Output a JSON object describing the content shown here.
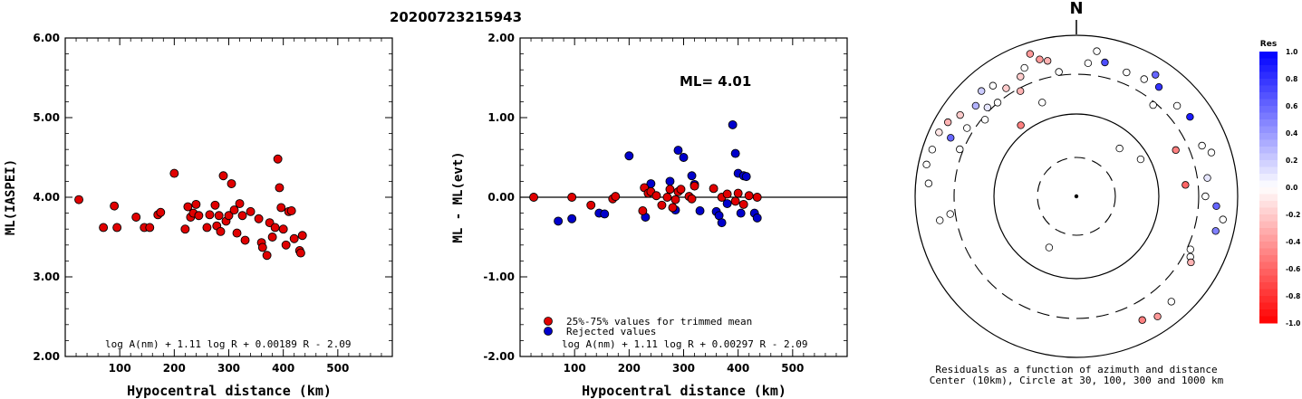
{
  "event_id": "20200723215943",
  "chart_data": [
    {
      "type": "scatter",
      "ylabel": "ML(IASPEI)",
      "xlabel": "Hypocentral distance (km)",
      "xlim": [
        0,
        600
      ],
      "ylim": [
        2.0,
        6.0
      ],
      "xticks": [
        "100",
        "200",
        "300",
        "400",
        "500"
      ],
      "yticks": [
        "2.00",
        "3.00",
        "4.00",
        "5.00",
        "6.00"
      ],
      "formula": "log A(nm) + 1.11 log R + 0.00189 R - 2.09",
      "marker_color": "#e00000",
      "points": [
        [
          25,
          3.97
        ],
        [
          70,
          3.62
        ],
        [
          90,
          3.89
        ],
        [
          95,
          3.62
        ],
        [
          130,
          3.75
        ],
        [
          145,
          3.62
        ],
        [
          155,
          3.62
        ],
        [
          170,
          3.78
        ],
        [
          175,
          3.81
        ],
        [
          200,
          4.3
        ],
        [
          220,
          3.6
        ],
        [
          225,
          3.88
        ],
        [
          230,
          3.75
        ],
        [
          235,
          3.8
        ],
        [
          240,
          3.91
        ],
        [
          245,
          3.77
        ],
        [
          260,
          3.62
        ],
        [
          265,
          3.78
        ],
        [
          275,
          3.9
        ],
        [
          278,
          3.64
        ],
        [
          282,
          3.77
        ],
        [
          285,
          3.57
        ],
        [
          290,
          4.27
        ],
        [
          295,
          3.7
        ],
        [
          300,
          3.77
        ],
        [
          305,
          4.17
        ],
        [
          310,
          3.84
        ],
        [
          315,
          3.55
        ],
        [
          320,
          3.92
        ],
        [
          325,
          3.77
        ],
        [
          330,
          3.46
        ],
        [
          340,
          3.82
        ],
        [
          355,
          3.73
        ],
        [
          360,
          3.43
        ],
        [
          362,
          3.37
        ],
        [
          370,
          3.27
        ],
        [
          375,
          3.68
        ],
        [
          380,
          3.5
        ],
        [
          385,
          3.62
        ],
        [
          390,
          4.48
        ],
        [
          393,
          4.12
        ],
        [
          396,
          3.87
        ],
        [
          400,
          3.6
        ],
        [
          405,
          3.4
        ],
        [
          410,
          3.82
        ],
        [
          415,
          3.83
        ],
        [
          420,
          3.48
        ],
        [
          430,
          3.33
        ],
        [
          432,
          3.3
        ],
        [
          435,
          3.52
        ]
      ]
    },
    {
      "type": "scatter",
      "ylabel": "ML - ML(evt)",
      "xlabel": "Hypocentral distance (km)",
      "xlim": [
        0,
        600
      ],
      "ylim": [
        -2.0,
        2.0
      ],
      "xticks": [
        "100",
        "200",
        "300",
        "400",
        "500"
      ],
      "yticks": [
        "-2.00",
        "-1.00",
        "0.00",
        "1.00",
        "2.00"
      ],
      "annotation": "ML= 4.01",
      "formula": "log A(nm) + 1.11 log R + 0.00297 R - 2.09",
      "legend": [
        "25%-75% values for trimmed mean",
        "Rejected values"
      ],
      "legend_colors": [
        "#e00000",
        "#0000cc"
      ],
      "series": [
        {
          "name": "25%-75% values for trimmed mean",
          "points": [
            [
              25,
              0.0
            ],
            [
              95,
              0.0
            ],
            [
              130,
              -0.1
            ],
            [
              170,
              -0.02
            ],
            [
              175,
              0.01
            ],
            [
              225,
              -0.17
            ],
            [
              228,
              0.12
            ],
            [
              235,
              0.05
            ],
            [
              240,
              0.07
            ],
            [
              250,
              0.02
            ],
            [
              260,
              -0.1
            ],
            [
              270,
              0.0
            ],
            [
              275,
              0.1
            ],
            [
              280,
              -0.13
            ],
            [
              285,
              -0.03
            ],
            [
              290,
              0.07
            ],
            [
              295,
              0.1
            ],
            [
              310,
              0.01
            ],
            [
              315,
              -0.02
            ],
            [
              320,
              0.14
            ],
            [
              355,
              0.11
            ],
            [
              370,
              0.0
            ],
            [
              380,
              0.04
            ],
            [
              395,
              -0.05
            ],
            [
              400,
              0.05
            ],
            [
              410,
              -0.09
            ],
            [
              420,
              0.02
            ],
            [
              435,
              0.0
            ]
          ]
        },
        {
          "name": "Rejected values",
          "points": [
            [
              70,
              -0.3
            ],
            [
              95,
              -0.27
            ],
            [
              145,
              -0.2
            ],
            [
              155,
              -0.21
            ],
            [
              200,
              0.52
            ],
            [
              230,
              -0.25
            ],
            [
              240,
              0.17
            ],
            [
              275,
              0.2
            ],
            [
              285,
              -0.16
            ],
            [
              290,
              0.59
            ],
            [
              300,
              0.5
            ],
            [
              315,
              0.27
            ],
            [
              320,
              0.16
            ],
            [
              330,
              -0.17
            ],
            [
              360,
              -0.18
            ],
            [
              365,
              -0.23
            ],
            [
              370,
              -0.32
            ],
            [
              380,
              -0.08
            ],
            [
              390,
              0.91
            ],
            [
              395,
              0.55
            ],
            [
              400,
              0.3
            ],
            [
              405,
              -0.2
            ],
            [
              410,
              0.27
            ],
            [
              415,
              0.26
            ],
            [
              430,
              -0.2
            ],
            [
              435,
              -0.26
            ]
          ]
        }
      ]
    },
    {
      "type": "scatter",
      "subtype": "polar-residuals",
      "north_label": "N",
      "caption": [
        "Residuals as a function of azimuth and distance",
        "Center (10km), Circle at 30, 100, 300 and 1000 km"
      ],
      "colorbar_title": "Res",
      "colorbar_ticks": [
        "1.0",
        "0.8",
        "0.6",
        "0.4",
        "0.2",
        "0.0",
        "-0.2",
        "-0.4",
        "-0.6",
        "-0.8",
        "-1.0"
      ],
      "points_az_r_res": [
        [
          -65,
          0.94,
          -0.1
        ],
        [
          -60,
          0.92,
          -0.3
        ],
        [
          -55,
          0.88,
          -0.2
        ],
        [
          -58,
          0.8,
          0.0
        ],
        [
          -65,
          0.86,
          0.6
        ],
        [
          -68,
          0.78,
          0.0
        ],
        [
          -72,
          0.94,
          0.0
        ],
        [
          -78,
          0.95,
          0.0
        ],
        [
          -85,
          0.92,
          0.0
        ],
        [
          -48,
          0.84,
          0.3
        ],
        [
          -50,
          0.74,
          0.0
        ],
        [
          -45,
          0.78,
          0.1
        ],
        [
          -40,
          0.76,
          0.0
        ],
        [
          -42,
          0.88,
          0.2
        ],
        [
          -37,
          0.86,
          0.0
        ],
        [
          -33,
          0.8,
          -0.2
        ],
        [
          -28,
          0.74,
          -0.3
        ],
        [
          -25,
          0.82,
          -0.2
        ],
        [
          -22,
          0.86,
          0.0
        ],
        [
          -18,
          0.93,
          -0.4
        ],
        [
          -15,
          0.88,
          -0.4
        ],
        [
          -12,
          0.86,
          -0.3
        ],
        [
          -8,
          0.78,
          0.0
        ],
        [
          -38,
          0.56,
          -0.5
        ],
        [
          -20,
          0.62,
          0.0
        ],
        [
          5,
          0.83,
          0.0
        ],
        [
          8,
          0.91,
          0.0
        ],
        [
          12,
          0.85,
          0.7
        ],
        [
          22,
          0.83,
          0.0
        ],
        [
          30,
          0.84,
          0.0
        ],
        [
          33,
          0.9,
          0.6
        ],
        [
          37,
          0.85,
          0.8
        ],
        [
          40,
          0.74,
          0.0
        ],
        [
          48,
          0.84,
          0.0
        ],
        [
          55,
          0.86,
          0.9
        ],
        [
          65,
          0.68,
          -0.5
        ],
        [
          68,
          0.84,
          0.0
        ],
        [
          72,
          0.88,
          0.0
        ],
        [
          84,
          0.68,
          -0.6
        ],
        [
          82,
          0.82,
          0.1
        ],
        [
          90,
          0.8,
          0.0
        ],
        [
          94,
          0.87,
          0.6
        ],
        [
          99,
          0.92,
          0.0
        ],
        [
          104,
          0.89,
          0.5
        ],
        [
          115,
          0.78,
          0.0
        ],
        [
          118,
          0.8,
          0.0
        ],
        [
          120,
          0.82,
          -0.3
        ],
        [
          138,
          0.88,
          0.0
        ],
        [
          146,
          0.9,
          -0.4
        ],
        [
          152,
          0.87,
          -0.5
        ],
        [
          -98,
          0.79,
          0.0
        ],
        [
          -100,
          0.86,
          0.0
        ],
        [
          -152,
          0.36,
          0.0
        ],
        [
          42,
          0.4,
          0.0
        ],
        [
          60,
          0.46,
          0.0
        ]
      ]
    }
  ]
}
